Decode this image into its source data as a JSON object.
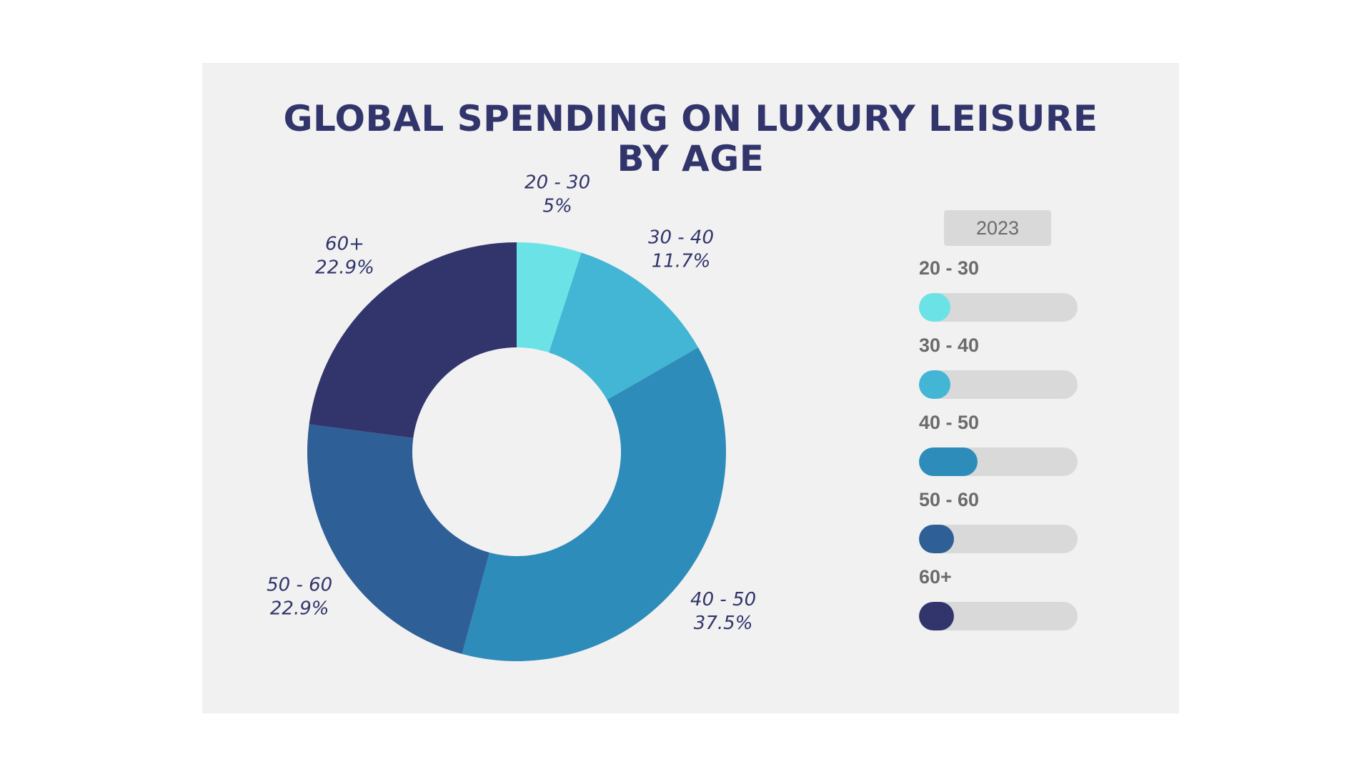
{
  "chart_data": {
    "type": "pie",
    "donut": true,
    "title": "GLOBAL SPENDING ON LUXURY LEISURE BY AGE",
    "title_lines": [
      "GLOBAL SPENDING ON LUXURY LEISURE",
      "BY AGE"
    ],
    "categories": [
      "20 - 30",
      "30 - 40",
      "40 - 50",
      "50 - 60",
      "60+"
    ],
    "values": [
      5,
      11.7,
      37.5,
      22.9,
      22.9
    ],
    "value_labels": [
      "5%",
      "11.7%",
      "37.5%",
      "22.9%",
      "22.9%"
    ],
    "colors": [
      "#6be3e6",
      "#43b6d5",
      "#2d8cba",
      "#2e5f97",
      "#31356b"
    ],
    "legend": {
      "year": "2023",
      "placement": "right",
      "bar_levels": [
        0.2,
        0.2,
        0.37,
        0.22,
        0.22
      ]
    }
  }
}
